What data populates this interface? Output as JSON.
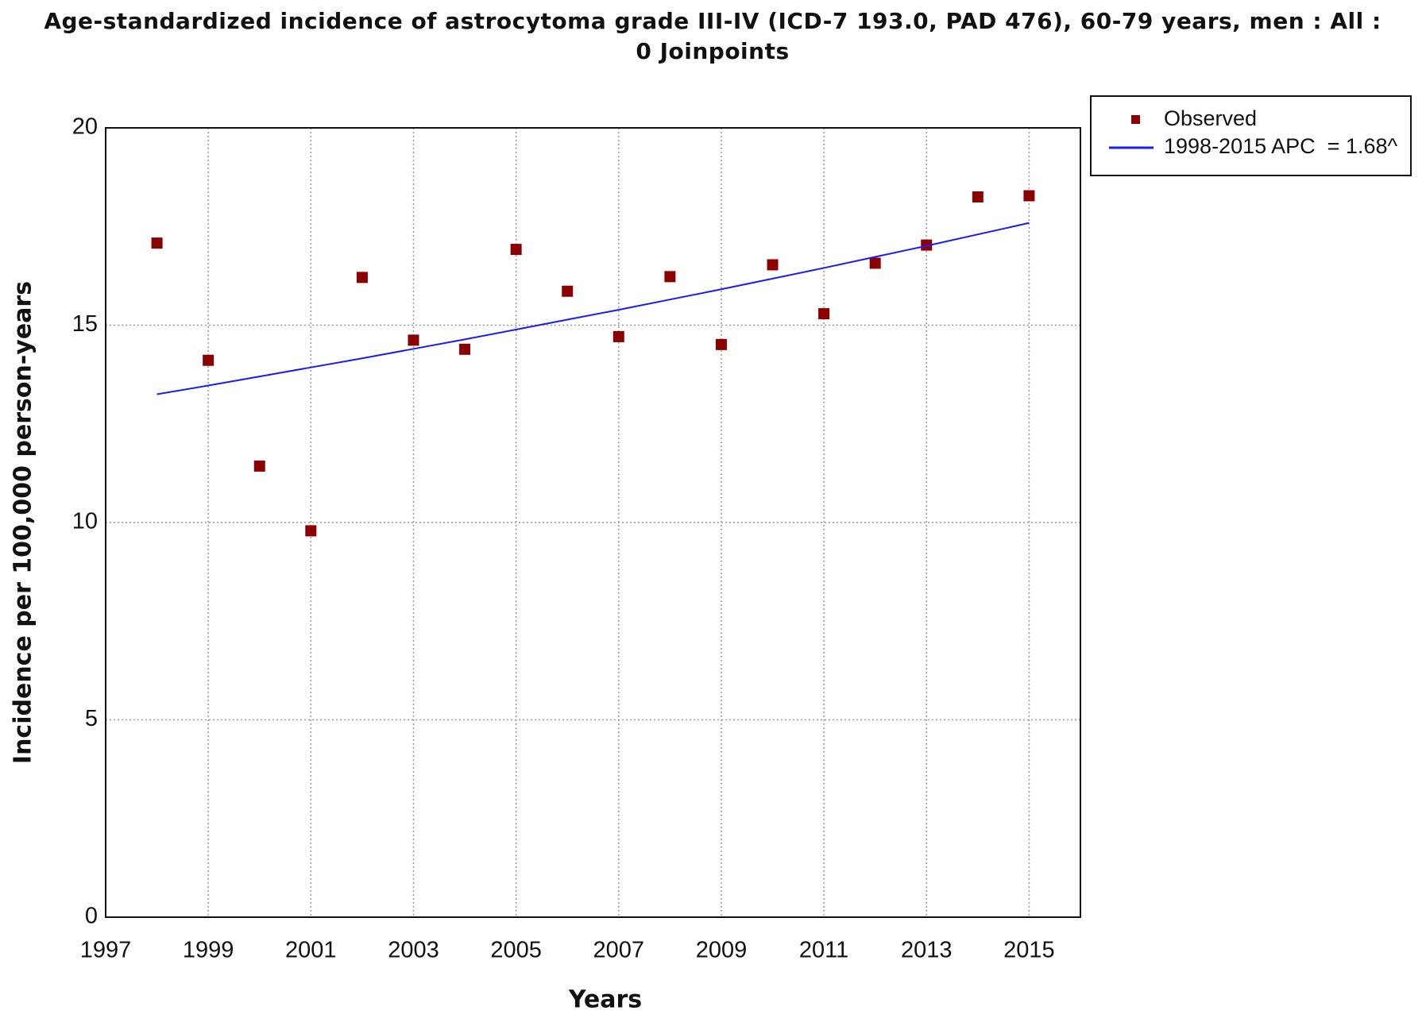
{
  "chart_data": {
    "type": "scatter",
    "title": "Age-standardized incidence of astrocytoma grade III-IV (ICD-7 193.0, PAD 476), 60-79 years, men : All : 0 Joinpoints",
    "x_label": "Years",
    "y_label": "Incidence per 100,000 person-years",
    "x": [
      1998,
      1999,
      2000,
      2001,
      2002,
      2003,
      2004,
      2005,
      2006,
      2007,
      2008,
      2009,
      2010,
      2011,
      2012,
      2013,
      2014,
      2015
    ],
    "series": [
      {
        "name": "Observed",
        "color": "#8b0000",
        "style": "marker",
        "values": [
          17.08,
          14.11,
          11.43,
          9.79,
          16.21,
          14.62,
          14.39,
          16.92,
          15.86,
          14.71,
          16.23,
          14.51,
          16.53,
          15.29,
          16.57,
          17.03,
          18.25,
          18.28
        ]
      },
      {
        "name": "1998-2015 APC  = 1.68^",
        "color": "#1a1aff",
        "style": "line",
        "values": [
          13.25,
          13.47,
          13.7,
          13.93,
          14.16,
          14.4,
          14.64,
          14.89,
          15.14,
          15.39,
          15.65,
          15.91,
          16.18,
          16.45,
          16.73,
          17.01,
          17.3,
          17.59
        ]
      }
    ],
    "xlim": [
      1997,
      2016
    ],
    "xticks": [
      1997,
      1999,
      2001,
      2003,
      2005,
      2007,
      2009,
      2011,
      2013,
      2015
    ],
    "ylim": [
      0,
      20
    ],
    "yticks": [
      0,
      5,
      10,
      15,
      20
    ],
    "grid": true,
    "legend": "outside-top-right"
  }
}
